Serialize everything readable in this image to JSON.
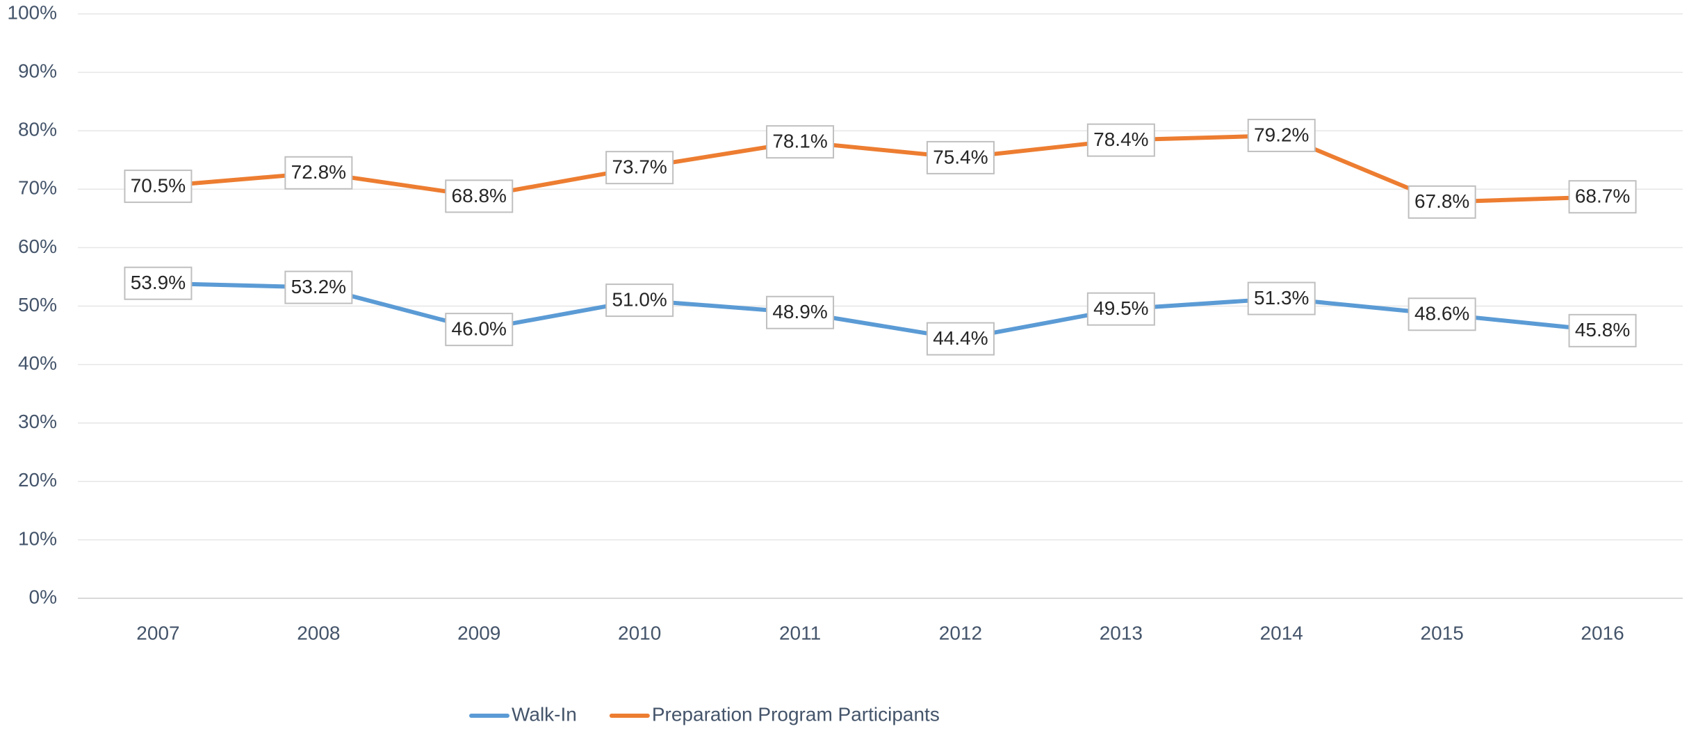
{
  "chart_data": {
    "type": "line",
    "categories": [
      "2007",
      "2008",
      "2009",
      "2010",
      "2011",
      "2012",
      "2013",
      "2014",
      "2015",
      "2016"
    ],
    "series": [
      {
        "name": "Walk-In",
        "color": "#5b9bd5",
        "values": [
          53.9,
          53.2,
          46.0,
          51.0,
          48.9,
          44.4,
          49.5,
          51.3,
          48.6,
          45.8
        ],
        "value_labels": [
          "53.9%",
          "53.2%",
          "46.0%",
          "51.0%",
          "48.9%",
          "44.4%",
          "49.5%",
          "51.3%",
          "48.6%",
          "45.8%"
        ]
      },
      {
        "name": "Preparation Program Participants",
        "color": "#ed7d31",
        "values": [
          70.5,
          72.8,
          68.8,
          73.7,
          78.1,
          75.4,
          78.4,
          79.2,
          67.8,
          68.7
        ],
        "value_labels": [
          "70.5%",
          "72.8%",
          "68.8%",
          "73.7%",
          "78.1%",
          "75.4%",
          "78.4%",
          "79.2%",
          "67.8%",
          "68.7%"
        ]
      }
    ],
    "ylim": [
      0,
      100
    ],
    "yticks": [
      {
        "value": 0,
        "label": "0%"
      },
      {
        "value": 10,
        "label": "10%"
      },
      {
        "value": 20,
        "label": "20%"
      },
      {
        "value": 30,
        "label": "30%"
      },
      {
        "value": 40,
        "label": "40%"
      },
      {
        "value": 50,
        "label": "50%"
      },
      {
        "value": 60,
        "label": "60%"
      },
      {
        "value": 70,
        "label": "70%"
      },
      {
        "value": 80,
        "label": "80%"
      },
      {
        "value": 90,
        "label": "90%"
      },
      {
        "value": 100,
        "label": "100%"
      }
    ],
    "grid": true,
    "legend": "bottom"
  }
}
